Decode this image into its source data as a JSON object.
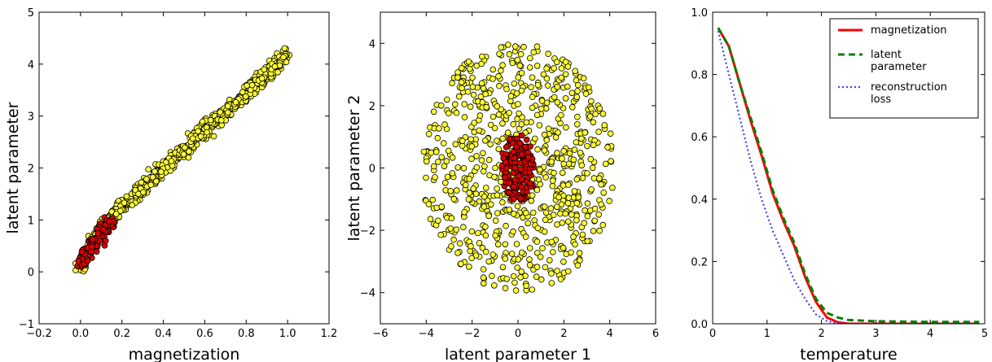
{
  "chart_data": [
    {
      "type": "scatter",
      "xlabel": "magnetization",
      "ylabel": "latent parameter",
      "xlim": [
        -0.2,
        1.2
      ],
      "ylim": [
        -1,
        5
      ],
      "xticks": [
        "−0.2",
        "0.0",
        "0.2",
        "0.4",
        "0.6",
        "0.8",
        "1.0",
        "1.2"
      ],
      "yticks": [
        "−1",
        "0",
        "1",
        "2",
        "3",
        "4",
        "5"
      ],
      "series": [
        {
          "color": "#ffff33",
          "trend": {
            "x": [
              0.0,
              0.05,
              0.1,
              0.2,
              0.3,
              0.4,
              0.5,
              0.6,
              0.7,
              0.8,
              0.9,
              0.95,
              1.0
            ],
            "y": [
              0.1,
              0.5,
              0.85,
              1.25,
              1.6,
              2.0,
              2.35,
              2.75,
              3.05,
              3.45,
              3.8,
              4.0,
              4.2
            ]
          },
          "spread": 0.07,
          "count": 900
        },
        {
          "color": "#dd0000",
          "trend": {
            "x": [
              0.0,
              0.05,
              0.1,
              0.15
            ],
            "y": [
              0.15,
              0.45,
              0.75,
              0.95
            ]
          },
          "spread": 0.08,
          "count": 140
        }
      ]
    },
    {
      "type": "scatter",
      "xlabel": "latent parameter 1",
      "ylabel": "latent parameter 2",
      "xlim": [
        -6,
        6
      ],
      "ylim": [
        -5,
        5
      ],
      "xticks": [
        "−6",
        "−4",
        "−2",
        "0",
        "2",
        "4",
        "6"
      ],
      "yticks": [
        "−4",
        "−2",
        "0",
        "2",
        "4"
      ],
      "series": [
        {
          "color": "#ffff33",
          "shape": "ellipse",
          "center": [
            0,
            0
          ],
          "radius": [
            4.2,
            4.0
          ],
          "count": 750
        },
        {
          "color": "#dd0000",
          "shape": "ellipse",
          "center": [
            0,
            0
          ],
          "radius": [
            0.75,
            1.1
          ],
          "count": 180
        }
      ]
    },
    {
      "type": "line",
      "xlabel": "temperature",
      "xlim": [
        0,
        5
      ],
      "ylim": [
        0,
        1.0
      ],
      "xticks": [
        "0",
        "1",
        "2",
        "3",
        "4",
        "5"
      ],
      "yticks": [
        "0.0",
        "0.2",
        "0.4",
        "0.6",
        "0.8",
        "1.0"
      ],
      "legend": "top-right",
      "series": [
        {
          "name": "magnetization",
          "color": "#ff0000",
          "style": "solid",
          "x": [
            0.1,
            0.3,
            0.5,
            0.7,
            0.9,
            1.1,
            1.3,
            1.5,
            1.7,
            1.9,
            2.1,
            2.3,
            2.5,
            3.0,
            4.0,
            4.9
          ],
          "y": [
            0.95,
            0.89,
            0.77,
            0.65,
            0.54,
            0.42,
            0.33,
            0.25,
            0.15,
            0.07,
            0.02,
            0.005,
            0.0,
            0.0,
            0.0,
            0.0
          ]
        },
        {
          "name": "latent\nparameter",
          "color": "#008000",
          "style": "dashed",
          "x": [
            0.1,
            0.3,
            0.5,
            0.7,
            0.9,
            1.1,
            1.3,
            1.5,
            1.7,
            1.9,
            2.1,
            2.3,
            2.5,
            3.0,
            4.0,
            4.9
          ],
          "y": [
            0.95,
            0.89,
            0.77,
            0.66,
            0.55,
            0.43,
            0.34,
            0.26,
            0.16,
            0.08,
            0.035,
            0.02,
            0.012,
            0.008,
            0.006,
            0.006
          ]
        },
        {
          "name": "reconstruction\nloss",
          "color": "#4444ee",
          "style": "dotted",
          "x": [
            0.1,
            0.3,
            0.5,
            0.7,
            0.9,
            1.1,
            1.3,
            1.5,
            1.7,
            1.9,
            2.1,
            2.3,
            2.5,
            3.0,
            4.0,
            4.9
          ],
          "y": [
            0.94,
            0.8,
            0.66,
            0.52,
            0.4,
            0.3,
            0.22,
            0.14,
            0.08,
            0.03,
            0.008,
            0.002,
            0.0,
            0.0,
            0.0,
            0.0
          ]
        }
      ]
    }
  ]
}
